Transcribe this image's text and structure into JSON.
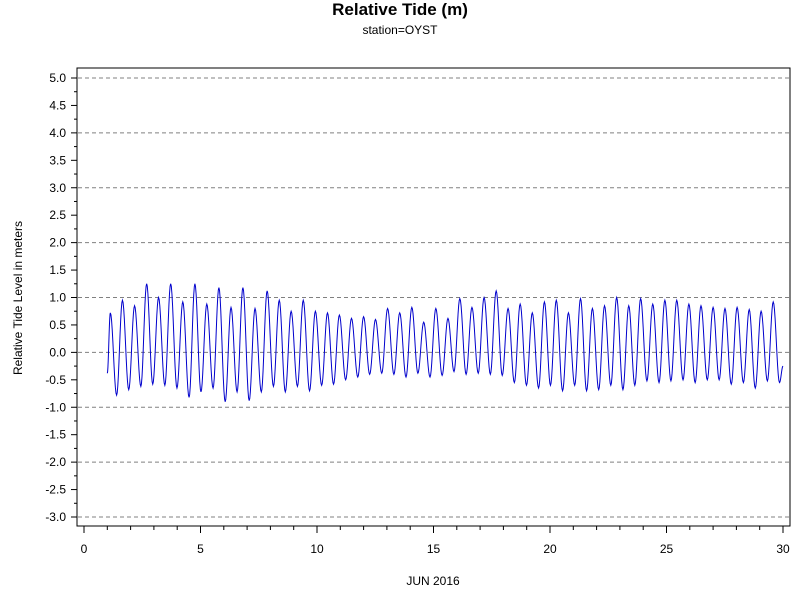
{
  "chart_data": {
    "type": "line",
    "title": "Relative Tide (m)",
    "subtitle": "station=OYST",
    "xlabel": "JUN 2016",
    "ylabel": "Relative Tide Level in meters",
    "xlim": [
      0,
      30
    ],
    "ylim": [
      -3.0,
      5.0
    ],
    "x_ticks": [
      0,
      5,
      10,
      15,
      20,
      25,
      30
    ],
    "y_ticks": [
      -3.0,
      -2.5,
      -2.0,
      -1.5,
      -1.0,
      -0.5,
      0.0,
      0.5,
      1.0,
      1.5,
      2.0,
      2.5,
      3.0,
      3.5,
      4.0,
      4.5,
      5.0
    ],
    "grid": "dashed horizontal at major y ticks",
    "series": [
      {
        "color": "#0000cc",
        "x_start": 1.0,
        "x_end": 30.0,
        "period_days": 0.5175,
        "extrema_x": [
          1.0,
          1.13,
          1.4,
          1.65,
          1.92,
          2.17,
          2.44,
          2.69,
          2.95,
          3.2,
          3.47,
          3.72,
          3.99,
          4.24,
          4.51,
          4.76,
          5.02,
          5.27,
          5.54,
          5.79,
          6.06,
          6.31,
          6.57,
          6.82,
          7.09,
          7.34,
          7.61,
          7.86,
          8.13,
          8.38,
          8.64,
          8.89,
          9.16,
          9.41,
          9.68,
          9.93,
          10.2,
          10.45,
          10.71,
          10.96,
          11.23,
          11.48,
          11.75,
          12.0,
          12.26,
          12.51,
          12.78,
          13.03,
          13.3,
          13.55,
          13.82,
          14.07,
          14.33,
          14.58,
          14.85,
          15.1,
          15.37,
          15.62,
          15.88,
          16.13,
          16.4,
          16.65,
          16.92,
          17.17,
          17.44,
          17.69,
          17.95,
          18.2,
          18.47,
          18.72,
          18.99,
          19.24,
          19.51,
          19.76,
          20.02,
          20.27,
          20.54,
          20.79,
          21.06,
          21.31,
          21.57,
          21.82,
          22.09,
          22.34,
          22.61,
          22.86,
          23.13,
          23.38,
          23.64,
          23.89,
          24.16,
          24.41,
          24.68,
          24.93,
          25.19,
          25.44,
          25.71,
          25.96,
          26.23,
          26.48,
          26.75,
          27.0,
          27.26,
          27.51,
          27.78,
          28.03,
          28.3,
          28.55,
          28.81,
          29.06,
          29.33,
          29.58,
          29.85,
          30.0
        ],
        "extrema_y": [
          -0.38,
          0.72,
          -0.78,
          0.95,
          -0.68,
          0.85,
          -0.62,
          1.25,
          -0.58,
          1.0,
          -0.6,
          1.25,
          -0.65,
          0.92,
          -0.82,
          1.25,
          -0.72,
          0.88,
          -0.65,
          1.18,
          -0.9,
          0.82,
          -0.72,
          1.18,
          -0.88,
          0.8,
          -0.72,
          1.12,
          -0.62,
          0.95,
          -0.72,
          0.75,
          -0.62,
          0.95,
          -0.7,
          0.75,
          -0.6,
          0.72,
          -0.58,
          0.68,
          -0.5,
          0.62,
          -0.45,
          0.65,
          -0.4,
          0.6,
          -0.38,
          0.8,
          -0.4,
          0.72,
          -0.45,
          0.82,
          -0.38,
          0.55,
          -0.45,
          0.8,
          -0.42,
          0.62,
          -0.35,
          0.98,
          -0.4,
          0.82,
          -0.38,
          1.0,
          -0.4,
          1.12,
          -0.42,
          0.8,
          -0.55,
          0.88,
          -0.6,
          0.72,
          -0.65,
          0.92,
          -0.6,
          0.95,
          -0.7,
          0.72,
          -0.6,
          0.98,
          -0.7,
          0.8,
          -0.68,
          0.85,
          -0.6,
          1.0,
          -0.68,
          0.85,
          -0.6,
          0.98,
          -0.52,
          0.88,
          -0.55,
          0.95,
          -0.52,
          0.95,
          -0.5,
          0.88,
          -0.55,
          0.85,
          -0.5,
          0.82,
          -0.5,
          0.8,
          -0.58,
          0.82,
          -0.55,
          0.78,
          -0.65,
          0.75,
          -0.52,
          0.92,
          -0.55,
          -0.25
        ]
      }
    ]
  }
}
